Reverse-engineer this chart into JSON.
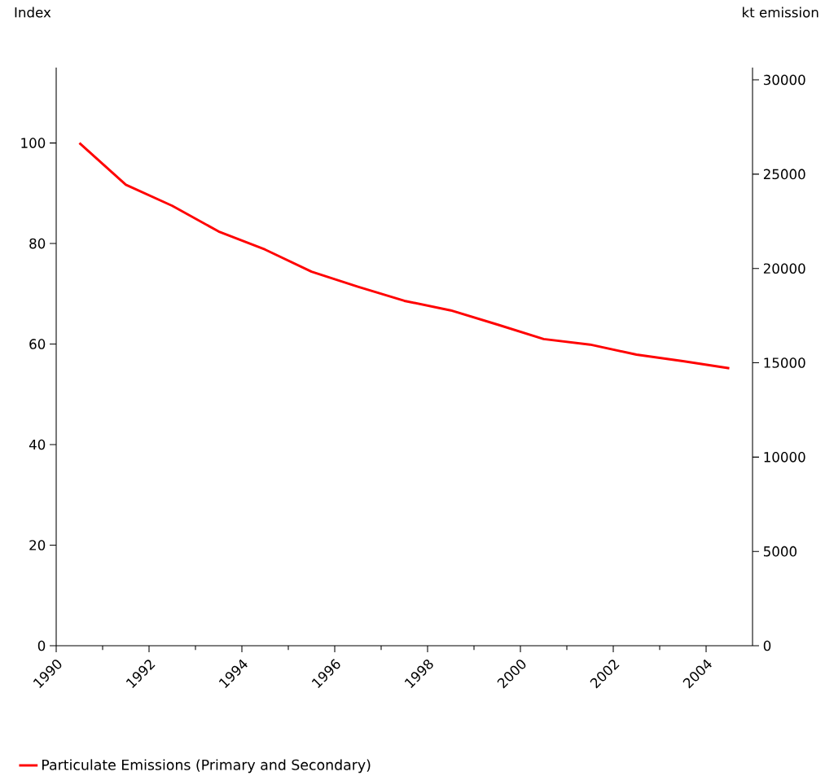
{
  "chart_data": {
    "type": "line",
    "ylabel": "Index",
    "y2label": "kt emission",
    "x": [
      1990.5,
      1991.5,
      1992.5,
      1993.5,
      1994.5,
      1995.5,
      1996.5,
      1997.5,
      1998.5,
      1999.5,
      2000.5,
      2001.5,
      2002.5,
      2003.5,
      2004.5
    ],
    "series": [
      {
        "name": "Particulate Emissions (Primary and Secondary)",
        "color": "#ff0000",
        "values": [
          100,
          91.7,
          87.5,
          82.4,
          78.8,
          74.4,
          71.4,
          68.6,
          66.7,
          63.9,
          61.0,
          59.9,
          57.9,
          56.6,
          55.2
        ]
      }
    ],
    "xlim": [
      1990,
      2005
    ],
    "xticks": [
      1990,
      1992,
      1994,
      1996,
      1998,
      2000,
      2002,
      2004
    ],
    "ylim": [
      0,
      115
    ],
    "yticks": [
      0,
      20,
      40,
      60,
      80,
      100
    ],
    "y2lim": [
      0,
      30650
    ],
    "y2ticks": [
      0,
      5000,
      10000,
      15000,
      20000,
      25000,
      30000
    ],
    "legend": "bottom",
    "grid": false,
    "marker": "none",
    "line_style": "solid"
  }
}
